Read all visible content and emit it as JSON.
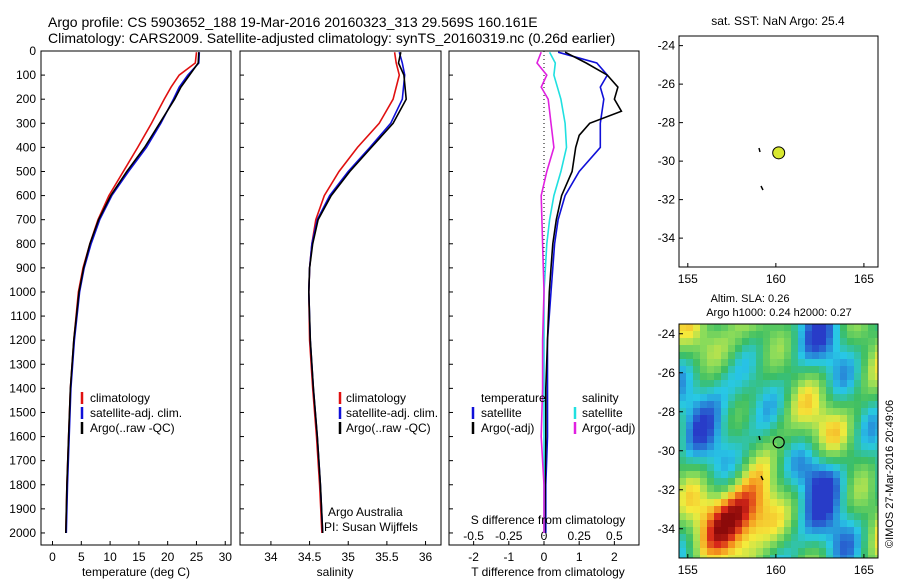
{
  "header": {
    "title_line1": "Argo profile: CS 5903652_188 19-Mar-2016 20160323_313 29.569S 160.161E",
    "title_line2": "Climatology: CARS2009. Satellite-adjusted climatology: synTS_20160319.nc (0.26d earlier)"
  },
  "depth_ticks": [
    "0",
    "100",
    "200",
    "300",
    "400",
    "500",
    "600",
    "700",
    "800",
    "900",
    "1000",
    "1100",
    "1200",
    "1300",
    "1400",
    "1500",
    "1600",
    "1700",
    "1800",
    "1900",
    "2000"
  ],
  "colors": {
    "climatology": "#e01010",
    "satellite": "#1010d8",
    "argo": "#000000",
    "salinity_satellite": "#20e0e0",
    "salinity_argo": "#e020e0",
    "float_marker": "#d8e830"
  },
  "chart_data": [
    {
      "type": "line",
      "name": "temperature-profile",
      "xlabel": "temperature (deg C)",
      "xlim": [
        -2,
        31
      ],
      "ylim": [
        0,
        2050
      ],
      "inverted_y": true,
      "x_ticks": [
        "0",
        "5",
        "10",
        "15",
        "20",
        "25",
        "30"
      ],
      "legend": [
        "climatology",
        "satellite-adj. clim.",
        "Argo(..raw -QC)"
      ],
      "series": [
        {
          "name": "climatology",
          "color": "red",
          "depth": [
            5,
            50,
            100,
            150,
            200,
            300,
            400,
            500,
            600,
            700,
            800,
            900,
            1000,
            1200,
            1400,
            1600,
            1800,
            2000
          ],
          "values": [
            25.0,
            24.8,
            22.0,
            20.6,
            19.4,
            17.2,
            14.8,
            12.3,
            9.8,
            7.9,
            6.5,
            5.3,
            4.5,
            3.7,
            3.1,
            2.8,
            2.5,
            2.3
          ]
        },
        {
          "name": "satellite-adj. clim.",
          "color": "blue",
          "depth": [
            5,
            50,
            100,
            150,
            200,
            300,
            400,
            500,
            600,
            700,
            800,
            900,
            1000,
            1200,
            1400,
            1600,
            1800,
            2000
          ],
          "values": [
            25.5,
            25.4,
            23.5,
            22.0,
            21.0,
            18.8,
            16.3,
            13.2,
            10.3,
            8.2,
            6.7,
            5.5,
            4.7,
            3.8,
            3.2,
            2.9,
            2.6,
            2.4
          ]
        },
        {
          "name": "Argo(..raw -QC)",
          "color": "black",
          "depth": [
            5,
            50,
            100,
            150,
            200,
            300,
            400,
            500,
            600,
            700,
            800,
            900,
            1000,
            1200,
            1400,
            1600,
            1800,
            2000
          ],
          "values": [
            25.4,
            25.3,
            23.8,
            22.3,
            21.2,
            18.6,
            16.0,
            12.9,
            10.1,
            8.0,
            6.5,
            5.4,
            4.6,
            3.7,
            3.1,
            2.8,
            2.5,
            2.3
          ]
        }
      ]
    },
    {
      "type": "line",
      "name": "salinity-profile",
      "xlabel": "salinity",
      "xlim": [
        33.6,
        36.2
      ],
      "ylim": [
        0,
        2050
      ],
      "inverted_y": true,
      "x_ticks": [
        "34",
        "34.5",
        "35",
        "35.5",
        "36"
      ],
      "legend": [
        "climatology",
        "satellite-adj. clim.",
        "Argo(..raw -QC)"
      ],
      "annotation": [
        "Argo Australia",
        "PI: Susan Wijffels"
      ],
      "series": [
        {
          "name": "climatology",
          "color": "red",
          "depth": [
            5,
            50,
            100,
            200,
            300,
            400,
            500,
            600,
            700,
            800,
            900,
            1000,
            1200,
            1400,
            1600,
            1800,
            2000
          ],
          "values": [
            35.6,
            35.62,
            35.66,
            35.58,
            35.4,
            35.12,
            34.88,
            34.69,
            34.58,
            34.53,
            34.5,
            34.49,
            34.5,
            34.54,
            34.59,
            34.63,
            34.66
          ]
        },
        {
          "name": "satellite-adj. clim.",
          "color": "blue",
          "depth": [
            5,
            50,
            100,
            200,
            300,
            400,
            500,
            600,
            700,
            800,
            900,
            1000,
            1200,
            1400,
            1600,
            1800,
            2000
          ],
          "values": [
            35.66,
            35.7,
            35.73,
            35.7,
            35.55,
            35.28,
            35.0,
            34.76,
            34.6,
            34.53,
            34.5,
            34.49,
            34.51,
            34.55,
            34.6,
            34.64,
            34.67
          ]
        },
        {
          "name": "Argo(..raw -QC)",
          "color": "black",
          "depth": [
            5,
            50,
            100,
            200,
            300,
            400,
            500,
            600,
            700,
            800,
            900,
            1000,
            1200,
            1400,
            1600,
            1800,
            2000
          ],
          "values": [
            35.68,
            35.65,
            35.72,
            35.75,
            35.58,
            35.3,
            35.02,
            34.78,
            34.61,
            34.54,
            34.5,
            34.49,
            34.51,
            34.55,
            34.6,
            34.64,
            34.67
          ]
        }
      ]
    },
    {
      "type": "line",
      "name": "difference-profile",
      "xlabel": "T difference from climatology",
      "xlabel_top": "S difference from climatology",
      "xlim": [
        -2.7,
        2.7
      ],
      "ylim": [
        0,
        2050
      ],
      "inverted_y": true,
      "x_ticks": [
        "-2",
        "-1",
        "0",
        "1",
        "2"
      ],
      "x_ticks_top": [
        "-0.5",
        "-0.25",
        "0",
        "0.25",
        "0.5"
      ],
      "legend_left_header": "temperature",
      "legend_left": [
        "satellite",
        "Argo(-adj)"
      ],
      "legend_right_header": "salinity",
      "legend_right": [
        "satellite",
        "Argo(-adj)"
      ],
      "series": [
        {
          "name": "T satellite",
          "depth": [
            5,
            50,
            100,
            150,
            200,
            300,
            400,
            500,
            600,
            700,
            800,
            900,
            1000,
            1200,
            1400,
            1600,
            1800,
            2000
          ],
          "values": [
            0.4,
            1.5,
            1.8,
            1.6,
            1.7,
            1.6,
            1.6,
            1.0,
            0.6,
            0.4,
            0.3,
            0.25,
            0.2,
            0.1,
            0.1,
            0.1,
            0.05,
            0.05
          ]
        },
        {
          "name": "T Argo(-adj)",
          "depth": [
            5,
            50,
            100,
            150,
            200,
            250,
            300,
            350,
            400,
            500,
            600,
            700,
            800,
            900,
            1000,
            1200,
            1400,
            1600,
            1800,
            2000
          ],
          "values": [
            0.6,
            1.2,
            1.8,
            2.1,
            2.0,
            2.2,
            1.3,
            1.0,
            0.9,
            0.8,
            0.5,
            0.35,
            0.25,
            0.2,
            0.15,
            0.1,
            0.05,
            0.05,
            0.03,
            0.02
          ]
        },
        {
          "name": "S satellite",
          "depth": [
            5,
            50,
            100,
            200,
            300,
            400,
            500,
            600,
            700,
            800,
            900,
            1000,
            1200,
            1400,
            1600,
            1800,
            2000
          ],
          "values": [
            0.04,
            0.08,
            0.07,
            0.12,
            0.15,
            0.16,
            0.12,
            0.07,
            0.04,
            0.02,
            0.01,
            0.0,
            0.0,
            0.0,
            0.0,
            0.0,
            0.0
          ]
        },
        {
          "name": "S Argo(-adj)",
          "depth": [
            5,
            50,
            100,
            150,
            200,
            300,
            400,
            500,
            600,
            800,
            1000,
            1200,
            1400,
            1600,
            1800,
            2000
          ],
          "values": [
            -0.02,
            -0.05,
            0.02,
            -0.02,
            0.03,
            0.05,
            0.07,
            0.02,
            -0.02,
            -0.01,
            0.0,
            -0.01,
            -0.01,
            -0.02,
            0.0,
            0.0
          ]
        }
      ]
    },
    {
      "type": "scatter",
      "name": "sst-map",
      "title": "sat. SST: NaN Argo: 25.4",
      "xlim": [
        154.5,
        165.8
      ],
      "ylim": [
        -35.5,
        -23.5
      ],
      "x_ticks": [
        "155",
        "160",
        "165"
      ],
      "y_ticks": [
        "-24",
        "-26",
        "-28",
        "-30",
        "-32",
        "-34"
      ],
      "points": [
        {
          "lon": 160.161,
          "lat": -29.569,
          "label": "float"
        }
      ]
    },
    {
      "type": "heatmap",
      "name": "sla-map",
      "title_line1": "Altim. SLA: 0.26",
      "title_line2": "Argo h1000: 0.24 h2000: 0.27",
      "xlim": [
        154.5,
        165.8
      ],
      "ylim": [
        -35.5,
        -23.5
      ],
      "x_ticks": [
        "155",
        "160",
        "165"
      ],
      "y_ticks": [
        "-24",
        "-26",
        "-28",
        "-30",
        "-32",
        "-34"
      ],
      "points": [
        {
          "lon": 160.161,
          "lat": -29.569,
          "label": "float"
        }
      ]
    }
  ],
  "footer": {
    "credit": "©IMOS 27-Mar-2016 20:49:06"
  }
}
